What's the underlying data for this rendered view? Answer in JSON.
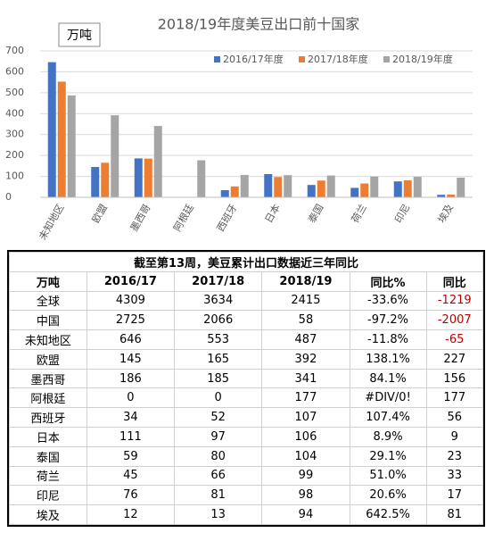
{
  "chart_data": {
    "type": "bar",
    "title": "2018/19年度美豆出口前十国家",
    "unit": "万吨",
    "categories": [
      "未知地区",
      "欧盟",
      "墨西哥",
      "阿根廷",
      "西班牙",
      "日本",
      "泰国",
      "荷兰",
      "印尼",
      "埃及"
    ],
    "series": [
      {
        "name": "2016/17年度",
        "color": "#4472c4",
        "values": [
          646,
          145,
          186,
          0,
          34,
          111,
          59,
          45,
          76,
          12
        ]
      },
      {
        "name": "2017/18年度",
        "color": "#ed7d31",
        "values": [
          553,
          165,
          185,
          0,
          52,
          97,
          80,
          66,
          81,
          13
        ]
      },
      {
        "name": "2018/19年度",
        "color": "#a5a5a5",
        "values": [
          487,
          392,
          341,
          177,
          107,
          106,
          104,
          99,
          98,
          94
        ]
      }
    ],
    "ylim": [
      0,
      700
    ],
    "yticks": [
      0,
      100,
      200,
      300,
      400,
      500,
      600,
      700
    ],
    "grid": true,
    "legend": "top-right"
  },
  "table": {
    "title": "截至第13周，美豆累计出口数据近三年同比",
    "header": [
      "万吨",
      "2016/17",
      "2017/18",
      "2018/19",
      "同比%",
      "同比"
    ],
    "rows": [
      [
        "全球",
        4309,
        3634,
        2415,
        "-33.6%",
        -1219
      ],
      [
        "中国",
        2725,
        2066,
        58,
        "-97.2%",
        -2007
      ],
      [
        "未知地区",
        646,
        553,
        487,
        "-11.8%",
        -65
      ],
      [
        "欧盟",
        145,
        165,
        392,
        "138.1%",
        227
      ],
      [
        "墨西哥",
        186,
        185,
        341,
        "84.1%",
        156
      ],
      [
        "阿根廷",
        0,
        0,
        177,
        "#DIV/0!",
        177
      ],
      [
        "西班牙",
        34,
        52,
        107,
        "107.4%",
        56
      ],
      [
        "日本",
        111,
        97,
        106,
        "8.9%",
        9
      ],
      [
        "泰国",
        59,
        80,
        104,
        "29.1%",
        23
      ],
      [
        "荷兰",
        45,
        66,
        99,
        "51.0%",
        33
      ],
      [
        "印尼",
        76,
        81,
        98,
        "20.6%",
        17
      ],
      [
        "埃及",
        12,
        13,
        94,
        "642.5%",
        81
      ]
    ]
  }
}
